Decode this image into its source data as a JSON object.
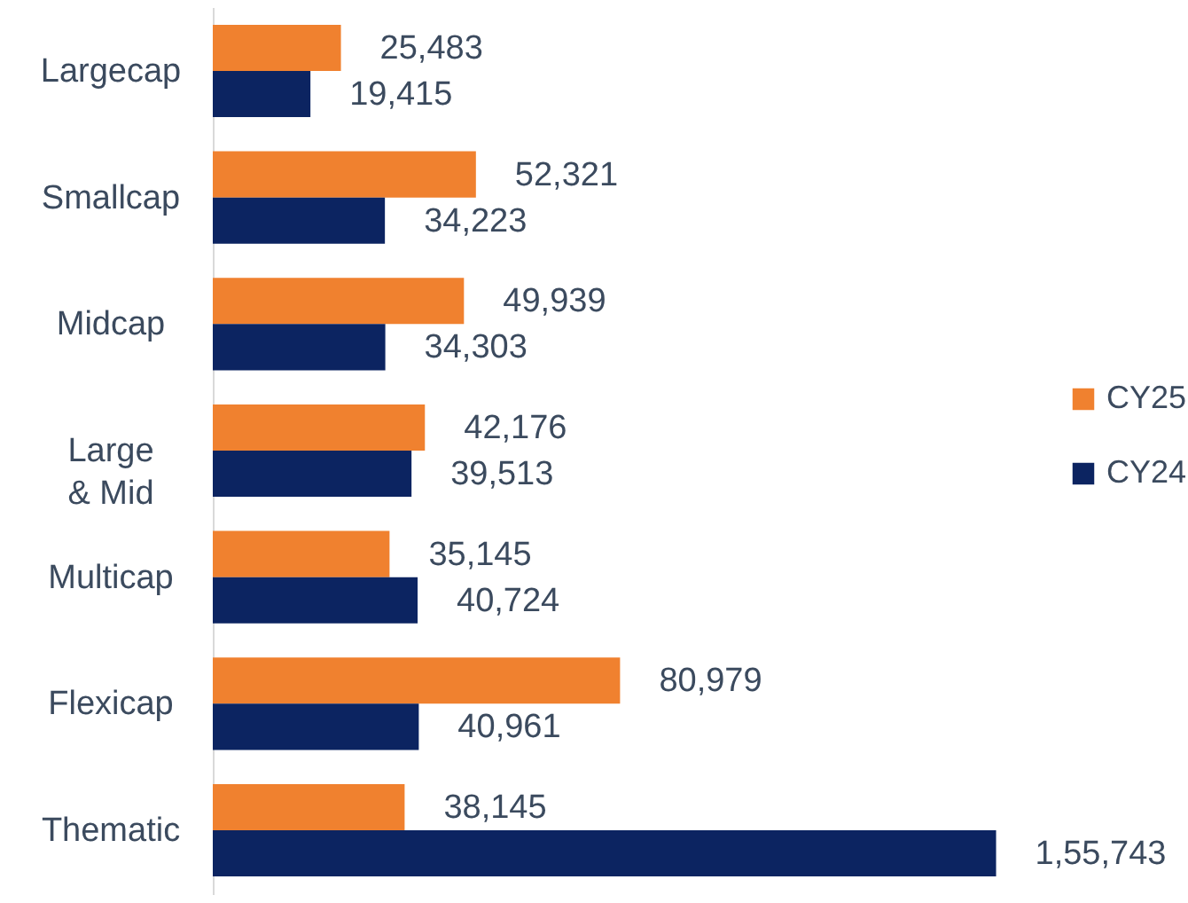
{
  "chart_data": {
    "type": "bar",
    "orientation": "horizontal",
    "categories": [
      "Largecap",
      "Smallcap",
      "Midcap",
      "Large & Mid",
      "Multicap",
      "Flexicap",
      "Thematic"
    ],
    "series": [
      {
        "name": "CY25",
        "color": "#f0812f",
        "values": [
          25483,
          52321,
          49939,
          42176,
          35145,
          80979,
          38145
        ],
        "value_labels": [
          "25,483",
          "52,321",
          "49,939",
          "42,176",
          "35,145",
          "80,979",
          "38,145"
        ]
      },
      {
        "name": "CY24",
        "color": "#0c2461",
        "values": [
          19415,
          34223,
          34303,
          39513,
          40724,
          40961,
          155743
        ],
        "value_labels": [
          "19,415",
          "34,223",
          "34,303",
          "39,513",
          "40,724",
          "40,961",
          "1,55,743"
        ]
      }
    ],
    "legend": "right",
    "grid": false
  }
}
